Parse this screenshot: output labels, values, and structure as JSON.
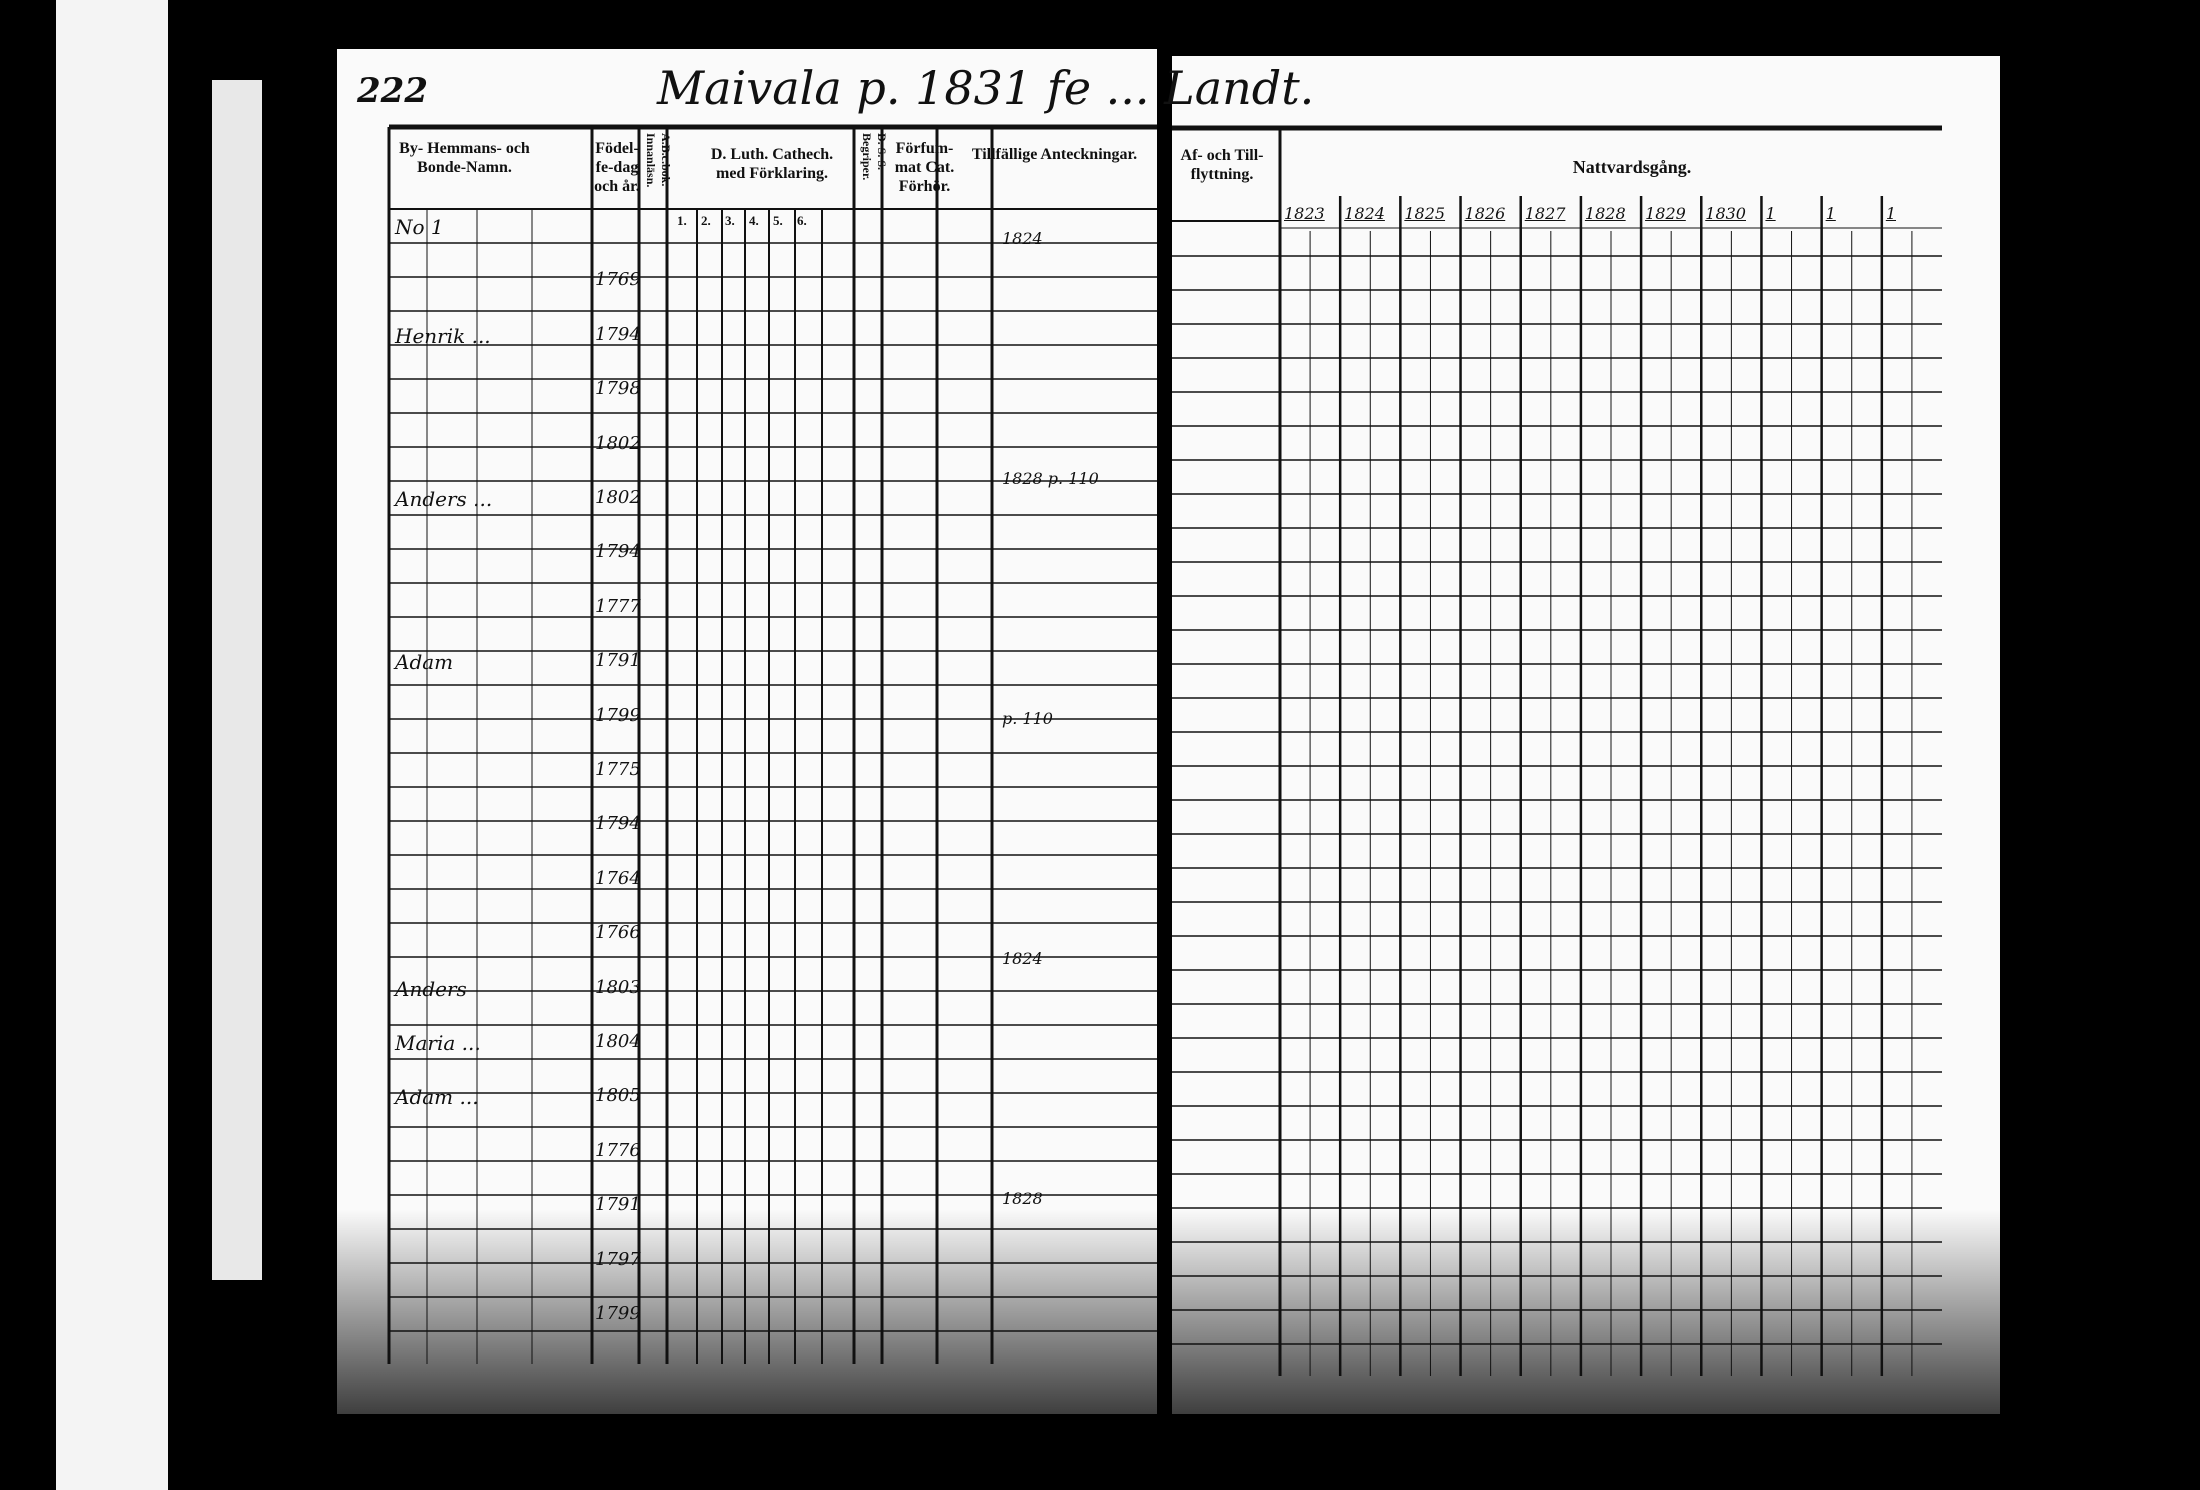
{
  "left_page": {
    "page_number": "222",
    "title": "Maivala p. 1831 fe ... Landt.",
    "headers": {
      "name": "By- Hemmans- och Bonde-Namn.",
      "birth": "Födel-fe-dag och år.",
      "abc": "A.B.c.bok. Innanläsn.",
      "catech": "D. Luth. Cathech. med Förklaring.",
      "catech_cols": [
        "1.",
        "2.",
        "3.",
        "4.",
        "5.",
        "6."
      ],
      "dss": "D. S. S. Begriper.",
      "forsummat": "Förfum-mat Cat. Förhör.",
      "tillfallige": "Tillfällige Anteckningar."
    },
    "entries": [
      {
        "name": "No 1",
        "year": ""
      },
      {
        "name": "",
        "year": "1769"
      },
      {
        "name": "Henrik ...",
        "year": "1794"
      },
      {
        "name": "",
        "year": "1798"
      },
      {
        "name": "",
        "year": "1802"
      },
      {
        "name": "Anders ...",
        "year": "1802"
      },
      {
        "name": "",
        "year": "1794"
      },
      {
        "name": "",
        "year": "1777"
      },
      {
        "name": "Adam",
        "year": "1791"
      },
      {
        "name": "",
        "year": "1799"
      },
      {
        "name": "",
        "year": "1775"
      },
      {
        "name": "",
        "year": "1794"
      },
      {
        "name": "",
        "year": "1764"
      },
      {
        "name": "",
        "year": "1766"
      },
      {
        "name": "Anders",
        "year": "1803"
      },
      {
        "name": "Maria ...",
        "year": "1804"
      },
      {
        "name": "Adam ...",
        "year": "1805"
      },
      {
        "name": "",
        "year": "1776"
      },
      {
        "name": "",
        "year": "1791"
      },
      {
        "name": "",
        "year": "1797"
      },
      {
        "name": "",
        "year": "1799"
      }
    ],
    "notes": [
      "1824",
      "1828 p. 110",
      "p. 110",
      "1824",
      "1828"
    ]
  },
  "right_page": {
    "headers": {
      "flyttning": "Af- och Till-flyttning.",
      "nattvard": "Nattvardsgång.",
      "years": [
        "1823",
        "1824",
        "1825",
        "1826",
        "1827",
        "1828",
        "1829",
        "1830",
        "1",
        "1",
        "1"
      ]
    }
  }
}
